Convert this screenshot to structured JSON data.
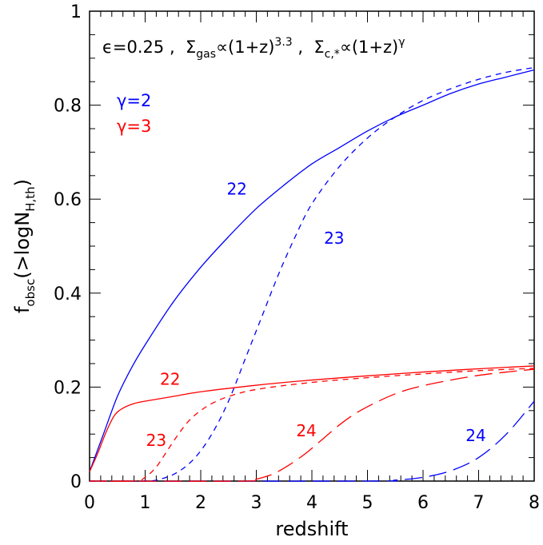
{
  "chart_data": {
    "type": "line",
    "xlabel": "redshift",
    "ylabel": "f",
    "ylabel_sub": "obsc",
    "ylabel_rest": "(>logN",
    "ylabel_sub2": "H,th",
    "ylabel_close": ")",
    "xlim": [
      0,
      8
    ],
    "ylim": [
      0,
      1
    ],
    "x_ticks": [
      "0",
      "1",
      "2",
      "3",
      "4",
      "5",
      "6",
      "7",
      "8"
    ],
    "y_ticks": [
      "0",
      "0.2",
      "0.4",
      "0.6",
      "0.8",
      "1"
    ],
    "grid": false,
    "annotation": {
      "eps": "ϵ=0.25",
      "sep": " ,  ",
      "sigma_gas": "Σ",
      "sigma_gas_sub": "gas",
      "propto1": "∝(1+z)",
      "exp1": "3.3",
      "sigma_c": "Σ",
      "sigma_c_sub": "c,*",
      "propto2": "∝(1+z)",
      "exp2": "γ"
    },
    "legend": [
      {
        "label": "γ=2",
        "color": "#0000ff"
      },
      {
        "label": "γ=3",
        "color": "#ff0000"
      }
    ],
    "legend_position": "top-left",
    "series": [
      {
        "label": "22",
        "color": "#0000ff",
        "dash": "solid",
        "x": [
          0,
          0.25,
          0.5,
          0.75,
          1,
          1.5,
          2,
          2.5,
          3,
          3.5,
          4,
          4.5,
          5,
          5.5,
          6,
          6.5,
          7,
          7.5,
          8
        ],
        "y": [
          0.02,
          0.1,
          0.18,
          0.24,
          0.29,
          0.38,
          0.455,
          0.52,
          0.58,
          0.63,
          0.675,
          0.71,
          0.745,
          0.775,
          0.8,
          0.825,
          0.845,
          0.86,
          0.875
        ]
      },
      {
        "label": "23",
        "color": "#0000ff",
        "dash": "short",
        "x": [
          0,
          1,
          1.3,
          1.6,
          1.9,
          2.2,
          2.5,
          2.8,
          3.1,
          3.4,
          3.7,
          4,
          4.5,
          5,
          5.5,
          6,
          6.5,
          7,
          7.5,
          8
        ],
        "y": [
          0,
          0,
          0.005,
          0.02,
          0.05,
          0.1,
          0.17,
          0.26,
          0.35,
          0.44,
          0.52,
          0.59,
          0.67,
          0.73,
          0.775,
          0.81,
          0.835,
          0.855,
          0.87,
          0.88
        ]
      },
      {
        "label": "24",
        "color": "#0000ff",
        "dash": "long",
        "x": [
          0,
          5,
          5.5,
          6,
          6.5,
          7,
          7.5,
          8
        ],
        "y": [
          0,
          0,
          0.002,
          0.008,
          0.022,
          0.05,
          0.1,
          0.17
        ]
      },
      {
        "label": "22",
        "color": "#ff0000",
        "dash": "solid",
        "x": [
          0,
          0.15,
          0.3,
          0.45,
          0.6,
          0.8,
          1,
          1.5,
          2,
          3,
          4,
          5,
          6,
          7,
          8
        ],
        "y": [
          0.02,
          0.06,
          0.105,
          0.14,
          0.155,
          0.165,
          0.17,
          0.18,
          0.19,
          0.204,
          0.215,
          0.224,
          0.232,
          0.239,
          0.245
        ]
      },
      {
        "label": "23",
        "color": "#ff0000",
        "dash": "short",
        "x": [
          0,
          0.8,
          1.0,
          1.2,
          1.4,
          1.6,
          1.8,
          2.0,
          2.2,
          2.5,
          3,
          4,
          5,
          6,
          7,
          8
        ],
        "y": [
          0,
          0,
          0.008,
          0.03,
          0.065,
          0.1,
          0.13,
          0.15,
          0.165,
          0.18,
          0.195,
          0.21,
          0.22,
          0.228,
          0.235,
          0.24
        ]
      },
      {
        "label": "24",
        "color": "#ff0000",
        "dash": "long",
        "x": [
          0,
          2.8,
          3.0,
          3.3,
          3.6,
          3.9,
          4.2,
          4.5,
          4.8,
          5.2,
          5.6,
          6,
          6.5,
          7,
          7.5,
          8
        ],
        "y": [
          0,
          0,
          0.004,
          0.015,
          0.035,
          0.06,
          0.09,
          0.12,
          0.145,
          0.17,
          0.19,
          0.203,
          0.215,
          0.225,
          0.232,
          0.238
        ]
      }
    ],
    "curve_labels": [
      {
        "text": "22",
        "color": "#0000ff",
        "x": 2.65,
        "y": 0.61
      },
      {
        "text": "23",
        "color": "#0000ff",
        "x": 4.4,
        "y": 0.505
      },
      {
        "text": "24",
        "color": "#0000ff",
        "x": 6.95,
        "y": 0.085
      },
      {
        "text": "22",
        "color": "#ff0000",
        "x": 1.45,
        "y": 0.205
      },
      {
        "text": "23",
        "color": "#ff0000",
        "x": 1.2,
        "y": 0.075
      },
      {
        "text": "24",
        "color": "#ff0000",
        "x": 3.9,
        "y": 0.095
      }
    ]
  }
}
